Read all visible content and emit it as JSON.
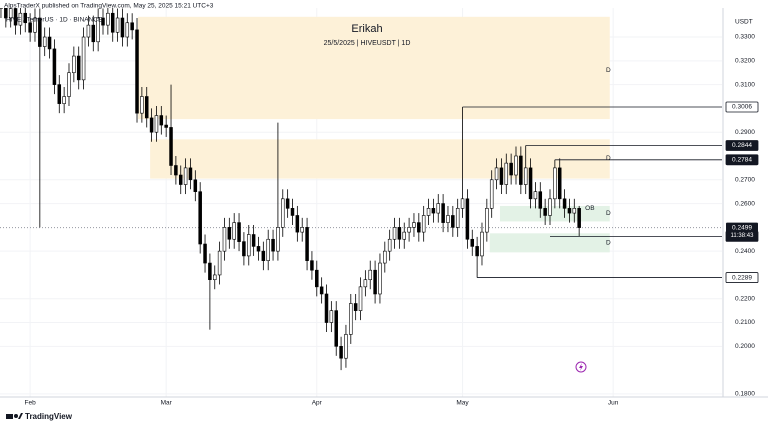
{
  "header": "AlpsTraderX published on TradingView.com, May 25, 2025 15:21 UTC+3",
  "footer": "TradingView",
  "chart_data": {
    "type": "candlestick",
    "symbol": "HIVE / TetherUS · 1D · BINANCE",
    "currency": "USDT",
    "title": "Erikah",
    "subtitle": "25/5/2025 | HIVEUSDT | 1D",
    "up_color": "#ffffff",
    "down_color": "#000000",
    "border_color": "#000000",
    "ohlc": [
      [
        0.342,
        0.349,
        0.338,
        0.345
      ],
      [
        0.345,
        0.349,
        0.334,
        0.338
      ],
      [
        0.338,
        0.346,
        0.334,
        0.342
      ],
      [
        0.342,
        0.346,
        0.331,
        0.335
      ],
      [
        0.335,
        0.344,
        0.331,
        0.34
      ],
      [
        0.34,
        0.344,
        0.332,
        0.336
      ],
      [
        0.336,
        0.34,
        0.328,
        0.332
      ],
      [
        0.332,
        0.342,
        0.328,
        0.338
      ],
      [
        0.338,
        0.342,
        0.25,
        0.326
      ],
      [
        0.326,
        0.334,
        0.322,
        0.33
      ],
      [
        0.33,
        0.334,
        0.321,
        0.325
      ],
      [
        0.325,
        0.329,
        0.306,
        0.31
      ],
      [
        0.31,
        0.314,
        0.298,
        0.302
      ],
      [
        0.302,
        0.309,
        0.298,
        0.305
      ],
      [
        0.305,
        0.319,
        0.301,
        0.315
      ],
      [
        0.315,
        0.326,
        0.311,
        0.322
      ],
      [
        0.322,
        0.326,
        0.308,
        0.312
      ],
      [
        0.312,
        0.334,
        0.308,
        0.33
      ],
      [
        0.33,
        0.339,
        0.326,
        0.335
      ],
      [
        0.335,
        0.339,
        0.324,
        0.328
      ],
      [
        0.328,
        0.342,
        0.324,
        0.338
      ],
      [
        0.338,
        0.342,
        0.331,
        0.335
      ],
      [
        0.335,
        0.344,
        0.331,
        0.34
      ],
      [
        0.34,
        0.344,
        0.328,
        0.332
      ],
      [
        0.332,
        0.342,
        0.328,
        0.338
      ],
      [
        0.338,
        0.342,
        0.326,
        0.33
      ],
      [
        0.33,
        0.34,
        0.326,
        0.336
      ],
      [
        0.336,
        0.34,
        0.329,
        0.333
      ],
      [
        0.333,
        0.338,
        0.294,
        0.298
      ],
      [
        0.298,
        0.309,
        0.294,
        0.305
      ],
      [
        0.305,
        0.309,
        0.292,
        0.296
      ],
      [
        0.296,
        0.3,
        0.286,
        0.29
      ],
      [
        0.29,
        0.301,
        0.286,
        0.297
      ],
      [
        0.297,
        0.301,
        0.289,
        0.293
      ],
      [
        0.293,
        0.297,
        0.288,
        0.292
      ],
      [
        0.292,
        0.31,
        0.272,
        0.276
      ],
      [
        0.276,
        0.28,
        0.268,
        0.272
      ],
      [
        0.272,
        0.276,
        0.264,
        0.268
      ],
      [
        0.268,
        0.279,
        0.264,
        0.275
      ],
      [
        0.275,
        0.279,
        0.266,
        0.27
      ],
      [
        0.27,
        0.274,
        0.261,
        0.265
      ],
      [
        0.265,
        0.269,
        0.239,
        0.243
      ],
      [
        0.243,
        0.247,
        0.231,
        0.235
      ],
      [
        0.235,
        0.239,
        0.207,
        0.228
      ],
      [
        0.228,
        0.234,
        0.224,
        0.23
      ],
      [
        0.23,
        0.244,
        0.226,
        0.24
      ],
      [
        0.24,
        0.254,
        0.236,
        0.25
      ],
      [
        0.25,
        0.254,
        0.241,
        0.245
      ],
      [
        0.245,
        0.256,
        0.241,
        0.252
      ],
      [
        0.252,
        0.256,
        0.24,
        0.244
      ],
      [
        0.244,
        0.248,
        0.234,
        0.238
      ],
      [
        0.238,
        0.251,
        0.234,
        0.247
      ],
      [
        0.247,
        0.251,
        0.238,
        0.242
      ],
      [
        0.242,
        0.246,
        0.236,
        0.24
      ],
      [
        0.24,
        0.244,
        0.232,
        0.236
      ],
      [
        0.236,
        0.249,
        0.232,
        0.245
      ],
      [
        0.245,
        0.249,
        0.236,
        0.24
      ],
      [
        0.24,
        0.294,
        0.236,
        0.25
      ],
      [
        0.25,
        0.266,
        0.246,
        0.262
      ],
      [
        0.262,
        0.266,
        0.254,
        0.258
      ],
      [
        0.258,
        0.262,
        0.251,
        0.255
      ],
      [
        0.255,
        0.259,
        0.244,
        0.248
      ],
      [
        0.248,
        0.254,
        0.244,
        0.25
      ],
      [
        0.25,
        0.254,
        0.232,
        0.236
      ],
      [
        0.236,
        0.24,
        0.228,
        0.232
      ],
      [
        0.232,
        0.236,
        0.221,
        0.225
      ],
      [
        0.225,
        0.229,
        0.218,
        0.222
      ],
      [
        0.222,
        0.226,
        0.206,
        0.21
      ],
      [
        0.21,
        0.219,
        0.206,
        0.215
      ],
      [
        0.215,
        0.219,
        0.196,
        0.2
      ],
      [
        0.2,
        0.204,
        0.19,
        0.195
      ],
      [
        0.195,
        0.209,
        0.191,
        0.205
      ],
      [
        0.205,
        0.222,
        0.201,
        0.218
      ],
      [
        0.218,
        0.222,
        0.211,
        0.215
      ],
      [
        0.215,
        0.229,
        0.211,
        0.225
      ],
      [
        0.225,
        0.232,
        0.221,
        0.228
      ],
      [
        0.228,
        0.236,
        0.224,
        0.232
      ],
      [
        0.232,
        0.236,
        0.218,
        0.222
      ],
      [
        0.222,
        0.239,
        0.218,
        0.235
      ],
      [
        0.235,
        0.244,
        0.231,
        0.24
      ],
      [
        0.24,
        0.249,
        0.236,
        0.245
      ],
      [
        0.245,
        0.254,
        0.241,
        0.25
      ],
      [
        0.25,
        0.254,
        0.241,
        0.245
      ],
      [
        0.245,
        0.252,
        0.241,
        0.248
      ],
      [
        0.248,
        0.254,
        0.244,
        0.25
      ],
      [
        0.25,
        0.256,
        0.246,
        0.252
      ],
      [
        0.252,
        0.256,
        0.244,
        0.248
      ],
      [
        0.248,
        0.259,
        0.244,
        0.255
      ],
      [
        0.255,
        0.262,
        0.251,
        0.258
      ],
      [
        0.258,
        0.262,
        0.252,
        0.256
      ],
      [
        0.256,
        0.264,
        0.252,
        0.26
      ],
      [
        0.26,
        0.264,
        0.248,
        0.252
      ],
      [
        0.252,
        0.259,
        0.248,
        0.255
      ],
      [
        0.255,
        0.259,
        0.246,
        0.25
      ],
      [
        0.25,
        0.262,
        0.246,
        0.258
      ],
      [
        0.258,
        0.3006,
        0.254,
        0.262
      ],
      [
        0.262,
        0.266,
        0.241,
        0.245
      ],
      [
        0.245,
        0.249,
        0.238,
        0.242
      ],
      [
        0.242,
        0.246,
        0.2289,
        0.238
      ],
      [
        0.238,
        0.252,
        0.234,
        0.248
      ],
      [
        0.248,
        0.262,
        0.244,
        0.258
      ],
      [
        0.258,
        0.274,
        0.254,
        0.27
      ],
      [
        0.27,
        0.279,
        0.266,
        0.275
      ],
      [
        0.275,
        0.279,
        0.264,
        0.268
      ],
      [
        0.268,
        0.281,
        0.264,
        0.277
      ],
      [
        0.277,
        0.281,
        0.268,
        0.272
      ],
      [
        0.272,
        0.284,
        0.268,
        0.28
      ],
      [
        0.28,
        0.284,
        0.264,
        0.268
      ],
      [
        0.268,
        0.2844,
        0.264,
        0.275
      ],
      [
        0.275,
        0.279,
        0.258,
        0.262
      ],
      [
        0.262,
        0.269,
        0.258,
        0.265
      ],
      [
        0.265,
        0.269,
        0.254,
        0.258
      ],
      [
        0.258,
        0.262,
        0.251,
        0.255
      ],
      [
        0.255,
        0.266,
        0.251,
        0.262
      ],
      [
        0.262,
        0.2784,
        0.258,
        0.275
      ],
      [
        0.275,
        0.279,
        0.258,
        0.262
      ],
      [
        0.262,
        0.266,
        0.254,
        0.258
      ],
      [
        0.258,
        0.262,
        0.252,
        0.256
      ],
      [
        0.256,
        0.262,
        0.252,
        0.258
      ],
      [
        0.258,
        0.259,
        0.2462,
        0.2499
      ]
    ],
    "xlim": [
      -0.2,
      148.4
    ],
    "xticks": [
      {
        "value": 6,
        "label": "Feb"
      },
      {
        "value": 34,
        "label": "Mar"
      },
      {
        "value": 65,
        "label": "Apr"
      },
      {
        "value": 95,
        "label": "May"
      },
      {
        "value": 126,
        "label": "Jun"
      }
    ],
    "ylim": [
      0.1787,
      0.3422
    ],
    "yticks": [
      {
        "value": 0.33,
        "label": "0.3300"
      },
      {
        "value": 0.32,
        "label": "0.3200"
      },
      {
        "value": 0.31,
        "label": "0.3100"
      },
      {
        "value": 0.29,
        "label": "0.2900"
      },
      {
        "value": 0.27,
        "label": "0.2700"
      },
      {
        "value": 0.26,
        "label": "0.2600"
      },
      {
        "value": 0.24,
        "label": "0.2400"
      },
      {
        "value": 0.22,
        "label": "0.2200"
      },
      {
        "value": 0.21,
        "label": "0.2100"
      },
      {
        "value": 0.2,
        "label": "0.2000"
      },
      {
        "value": 0.18,
        "label": "0.1800"
      }
    ],
    "grid": true,
    "zones": [
      {
        "xlim": [
          28.2,
          125.3
        ],
        "ylim": [
          0.2955,
          0.3385
        ],
        "color": "#fdf1d8"
      },
      {
        "xlim": [
          30.7,
          125.3
        ],
        "ylim": [
          0.2705,
          0.287
        ],
        "color": "#fdf1d8"
      },
      {
        "xlim": [
          102.7,
          125.3
        ],
        "ylim": [
          0.2525,
          0.259
        ],
        "color": "#e3f2e6"
      },
      {
        "xlim": [
          100.6,
          125.3
        ],
        "ylim": [
          0.2395,
          0.2475
        ],
        "color": "#e3f2e6"
      }
    ],
    "levels": [
      {
        "value": 0.3006,
        "label": "0.3006",
        "anchor": 95,
        "style": "light"
      },
      {
        "value": 0.2844,
        "label": "0.2844",
        "anchor": 108,
        "style": "dark"
      },
      {
        "value": 0.2784,
        "label": "0.2784",
        "anchor": 114,
        "style": "dark"
      },
      {
        "value": 0.2462,
        "label": "0.2462",
        "anchor": 113,
        "style": "dark"
      },
      {
        "value": 0.2289,
        "label": "0.2289",
        "anchor": 98,
        "style": "light"
      }
    ],
    "last_price": {
      "value": 0.2499,
      "label": "0.2499",
      "countdown": "11:38:43"
    },
    "annotations": [
      {
        "text": "D",
        "x": 125,
        "y": 0.316
      },
      {
        "text": "D",
        "x": 125,
        "y": 0.279
      },
      {
        "text": "D",
        "x": 125,
        "y": 0.256
      },
      {
        "text": "D",
        "x": 125,
        "y": 0.2435
      },
      {
        "text": "OB",
        "x": 121.2,
        "y": 0.258
      }
    ]
  }
}
